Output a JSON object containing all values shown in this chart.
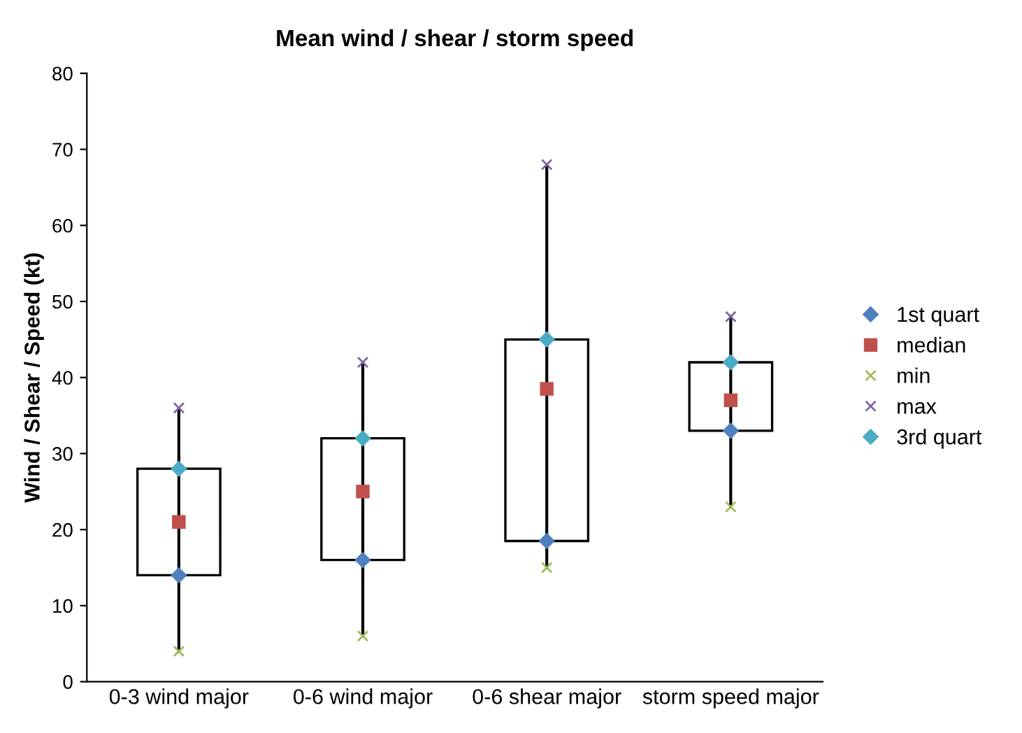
{
  "chart_data": {
    "type": "box",
    "title": "Mean wind / shear / storm speed",
    "ylabel": "Wind / Shear / Speed (kt)",
    "categories": [
      "0-3 wind major",
      "0-6 wind major",
      "0-6 shear major",
      "storm speed major"
    ],
    "boxes": [
      {
        "low": 4,
        "q1": 14,
        "q3": 28,
        "high": 36
      },
      {
        "low": 6,
        "q1": 16,
        "q3": 32,
        "high": 42
      },
      {
        "low": 15,
        "q1": 18.5,
        "q3": 45,
        "high": 68
      },
      {
        "low": 23,
        "q1": 33,
        "q3": 42,
        "high": 48
      }
    ],
    "series": [
      {
        "name": "1st quart",
        "type": "scatter",
        "marker": "diamond",
        "color": "#4f81bd",
        "x": [
          "0-3 wind major",
          "0-6 wind major",
          "0-6 shear major",
          "storm speed major"
        ],
        "values": [
          14,
          16,
          18.5,
          33
        ]
      },
      {
        "name": "median",
        "type": "scatter",
        "marker": "square",
        "color": "#c0504d",
        "x": [
          "0-3 wind major",
          "0-6 wind major",
          "0-6 shear major",
          "storm speed major"
        ],
        "values": [
          21,
          25,
          38.5,
          37
        ]
      },
      {
        "name": "min",
        "type": "scatter",
        "marker": "cross",
        "color": "#9bbb59",
        "x": [
          "0-3 wind major",
          "0-6 wind major",
          "0-6 shear major",
          "storm speed major"
        ],
        "values": [
          4,
          6,
          15,
          23
        ]
      },
      {
        "name": "max",
        "type": "scatter",
        "marker": "cross",
        "color": "#8064a2",
        "x": [
          "0-3 wind major",
          "0-6 wind major",
          "0-6 shear major",
          "storm speed major"
        ],
        "values": [
          36,
          42,
          68,
          48
        ]
      },
      {
        "name": "3rd quart",
        "type": "scatter",
        "marker": "diamond",
        "color": "#4bacc6",
        "x": [
          "0-3 wind major",
          "0-6 wind major",
          "0-6 shear major",
          "storm speed major"
        ],
        "values": [
          28,
          32,
          45,
          42
        ]
      }
    ],
    "ylim": [
      0,
      80
    ],
    "yticks": [
      0,
      10,
      20,
      30,
      40,
      50,
      60,
      70,
      80
    ],
    "grid": false,
    "legend": "right"
  }
}
